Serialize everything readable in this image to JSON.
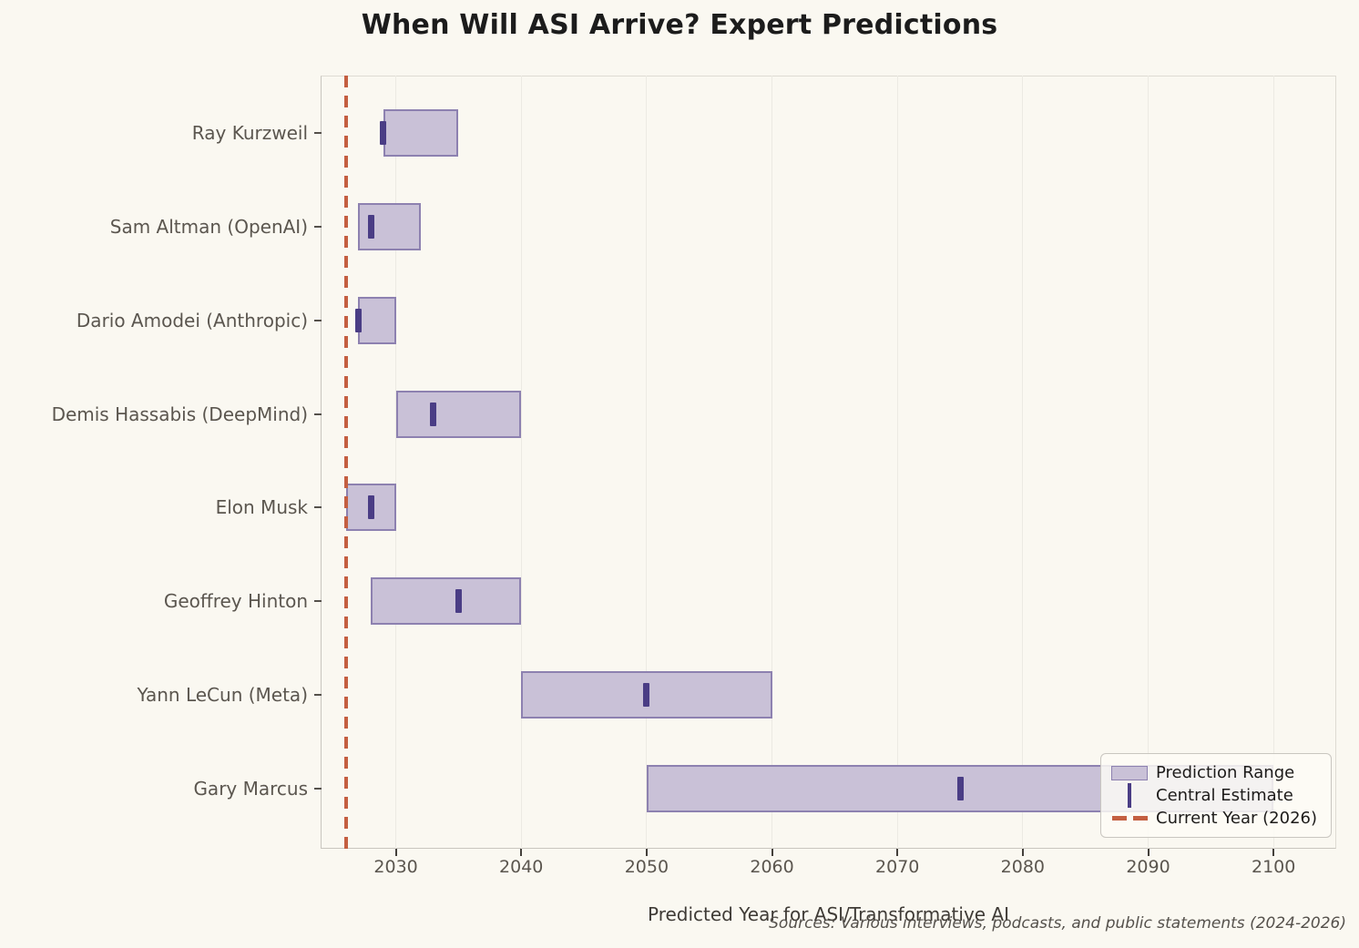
{
  "title": "When Will ASI Arrive? Expert Predictions",
  "xlabel": "Predicted Year for ASI/Transformative AI",
  "source_note": "Sources: Various interviews, podcasts, and public statements (2024-2026)",
  "legend": {
    "items": [
      {
        "label": "Prediction Range",
        "swatch": "range-patch-icon"
      },
      {
        "label": "Central Estimate",
        "swatch": "central-line-icon"
      },
      {
        "label": "Current Year (2026)",
        "swatch": "dashed-line-icon"
      }
    ]
  },
  "colors": {
    "background": "#faf8f1",
    "bar_fill": "#c9c1d7",
    "bar_edge": "#8d81b0",
    "central_marker": "#4a3d85",
    "current_year_line": "#c45f41",
    "gridline": "#eceae3",
    "axis_text": "#5b564f",
    "title_text": "#1c1c1c"
  },
  "chart_data": {
    "type": "bar",
    "orientation": "horizontal-range",
    "title": "When Will ASI Arrive? Expert Predictions",
    "xlabel": "Predicted Year for ASI/Transformative AI",
    "xlim": [
      2024,
      2105
    ],
    "xticks": [
      2030,
      2040,
      2050,
      2060,
      2070,
      2080,
      2090,
      2100
    ],
    "current_year": 2026,
    "grid": "vertical",
    "legend_position": "lower right",
    "series": [
      {
        "name": "Ray Kurzweil",
        "range": [
          2029,
          2035
        ],
        "central": 2029
      },
      {
        "name": "Sam Altman (OpenAI)",
        "range": [
          2027,
          2032
        ],
        "central": 2028
      },
      {
        "name": "Dario Amodei (Anthropic)",
        "range": [
          2027,
          2030
        ],
        "central": 2027
      },
      {
        "name": "Demis Hassabis (DeepMind)",
        "range": [
          2030,
          2040
        ],
        "central": 2033
      },
      {
        "name": "Elon Musk",
        "range": [
          2026,
          2030
        ],
        "central": 2028
      },
      {
        "name": "Geoffrey Hinton",
        "range": [
          2028,
          2040
        ],
        "central": 2035
      },
      {
        "name": "Yann LeCun (Meta)",
        "range": [
          2040,
          2060
        ],
        "central": 2050
      },
      {
        "name": "Gary Marcus",
        "range": [
          2050,
          2100
        ],
        "central": 2075
      }
    ]
  }
}
